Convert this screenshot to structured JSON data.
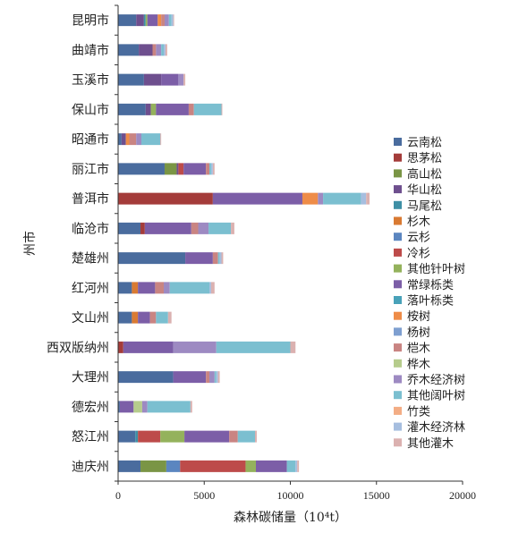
{
  "chart_data": {
    "type": "bar",
    "orientation": "horizontal",
    "stacked": true,
    "title": "",
    "xlabel": "森林碳储量（10⁴t）",
    "ylabel": "州市",
    "xlim": [
      0,
      20000
    ],
    "xticks": [
      "0",
      "5000",
      "10000",
      "15000",
      "20000"
    ],
    "grid": false,
    "legend_position": "right",
    "categories": [
      "昆明市",
      "曲靖市",
      "玉溪市",
      "保山市",
      "昭通市",
      "丽江市",
      "普洱市",
      "临沧市",
      "楚雄州",
      "红河州",
      "文山州",
      "西双版纳州",
      "大理州",
      "德宏州",
      "怒江州",
      "迪庆州"
    ],
    "series": [
      {
        "name": "云南松",
        "color": "#4a6c9e",
        "values": [
          1050,
          1200,
          1500,
          1600,
          200,
          2700,
          0,
          1300,
          3900,
          800,
          800,
          0,
          3200,
          100,
          1000,
          1300
        ]
      },
      {
        "name": "思茅松",
        "color": "#a43c3a",
        "values": [
          0,
          0,
          0,
          0,
          0,
          0,
          5500,
          250,
          0,
          0,
          0,
          300,
          0,
          0,
          0,
          0
        ]
      },
      {
        "name": "高山松",
        "color": "#7a9545",
        "values": [
          0,
          0,
          0,
          0,
          0,
          700,
          0,
          0,
          0,
          0,
          0,
          0,
          0,
          0,
          0,
          1500
        ]
      },
      {
        "name": "华山松",
        "color": "#6e4f8e",
        "values": [
          450,
          800,
          1000,
          300,
          250,
          100,
          0,
          0,
          0,
          0,
          0,
          0,
          0,
          0,
          0,
          0
        ]
      },
      {
        "name": "马尾松",
        "color": "#3e8fa5",
        "values": [
          100,
          0,
          0,
          0,
          0,
          0,
          0,
          0,
          0,
          0,
          0,
          0,
          0,
          0,
          150,
          0
        ]
      },
      {
        "name": "杉木",
        "color": "#d97a32",
        "values": [
          0,
          0,
          0,
          0,
          0,
          0,
          0,
          0,
          0,
          350,
          350,
          0,
          0,
          0,
          0,
          0
        ]
      },
      {
        "name": "云杉",
        "color": "#5b86c0",
        "values": [
          0,
          0,
          0,
          0,
          0,
          0,
          0,
          0,
          0,
          0,
          0,
          0,
          0,
          0,
          0,
          800
        ]
      },
      {
        "name": "冷杉",
        "color": "#bd4b4a",
        "values": [
          0,
          0,
          0,
          0,
          0,
          300,
          0,
          0,
          0,
          0,
          0,
          0,
          0,
          0,
          1300,
          3800
        ]
      },
      {
        "name": "其他针叶树",
        "color": "#94b25c",
        "values": [
          100,
          0,
          0,
          300,
          0,
          0,
          0,
          0,
          0,
          0,
          0,
          0,
          0,
          0,
          1400,
          600
        ]
      },
      {
        "name": "常绿栎类",
        "color": "#7c5ea7",
        "values": [
          600,
          0,
          1000,
          1900,
          0,
          1300,
          5200,
          2700,
          1600,
          1000,
          700,
          2900,
          1900,
          800,
          2600,
          1800
        ]
      },
      {
        "name": "落叶栎类",
        "color": "#49a2b9",
        "values": [
          0,
          0,
          0,
          0,
          0,
          0,
          0,
          0,
          0,
          0,
          0,
          0,
          0,
          0,
          0,
          0
        ]
      },
      {
        "name": "桉树",
        "color": "#ee8c48",
        "values": [
          200,
          0,
          0,
          0,
          200,
          0,
          900,
          0,
          0,
          0,
          0,
          0,
          0,
          0,
          0,
          0
        ]
      },
      {
        "name": "杨树",
        "color": "#7e9fd0",
        "values": [
          0,
          0,
          0,
          0,
          0,
          0,
          0,
          0,
          0,
          0,
          0,
          0,
          0,
          0,
          0,
          0
        ]
      },
      {
        "name": "桤木",
        "color": "#c98482",
        "values": [
          200,
          200,
          0,
          300,
          400,
          200,
          0,
          400,
          300,
          500,
          350,
          0,
          200,
          0,
          500,
          0
        ]
      },
      {
        "name": "桦木",
        "color": "#b6cc8c",
        "values": [
          0,
          0,
          0,
          0,
          0,
          0,
          0,
          0,
          0,
          0,
          0,
          0,
          0,
          500,
          0,
          0
        ]
      },
      {
        "name": "乔木经济树",
        "color": "#9d8ac2",
        "values": [
          250,
          300,
          300,
          0,
          300,
          0,
          300,
          600,
          0,
          350,
          0,
          2500,
          300,
          300,
          0,
          0
        ]
      },
      {
        "name": "其他阔叶树",
        "color": "#7bbfd0",
        "values": [
          150,
          150,
          0,
          1600,
          1100,
          100,
          2200,
          1300,
          100,
          2300,
          700,
          4300,
          100,
          2500,
          1000,
          500
        ]
      },
      {
        "name": "竹类",
        "color": "#f3ad85",
        "values": [
          0,
          0,
          0,
          0,
          0,
          0,
          0,
          0,
          0,
          0,
          0,
          0,
          0,
          0,
          0,
          0
        ]
      },
      {
        "name": "灌木经济林",
        "color": "#a6bedf",
        "values": [
          100,
          100,
          0,
          0,
          0,
          100,
          300,
          0,
          100,
          100,
          0,
          0,
          100,
          0,
          0,
          100
        ]
      },
      {
        "name": "其他灌木",
        "color": "#dbb1b0",
        "values": [
          50,
          100,
          100,
          50,
          50,
          100,
          200,
          200,
          100,
          200,
          200,
          300,
          100,
          100,
          100,
          100
        ]
      }
    ]
  }
}
